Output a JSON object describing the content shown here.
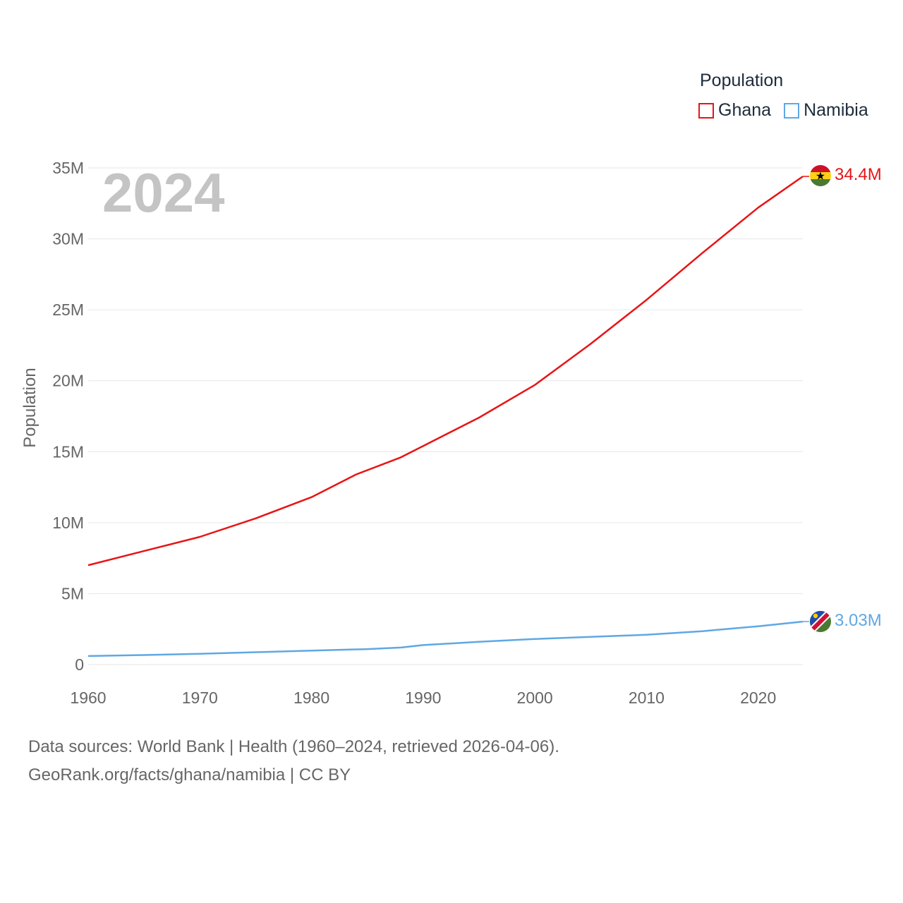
{
  "legend": {
    "title": "Population",
    "items": [
      {
        "name": "Ghana",
        "color": "#e81416"
      },
      {
        "name": "Namibia",
        "color": "#5fa8e3"
      }
    ]
  },
  "footer": {
    "line1": "Data sources: World Bank | Health (1960–2024, retrieved 2026-04-06).",
    "line2": "GeoRank.org/facts/ghana/namibia | CC BY"
  },
  "chart_data": {
    "type": "line",
    "title": "Population",
    "year_label": "2024",
    "ylabel": "Population",
    "xlabel": "",
    "xlim": [
      1960,
      2024
    ],
    "ylim": [
      0,
      35000000
    ],
    "x_ticks": [
      1960,
      1970,
      1980,
      1990,
      2000,
      2010,
      2020
    ],
    "x_tick_labels": [
      "1960",
      "1970",
      "1980",
      "1990",
      "2000",
      "2010",
      "2020"
    ],
    "y_ticks": [
      0,
      5000000,
      10000000,
      15000000,
      20000000,
      25000000,
      30000000,
      35000000
    ],
    "y_tick_labels": [
      "0",
      "5M",
      "10M",
      "15M",
      "20M",
      "25M",
      "30M",
      "35M"
    ],
    "grid": true,
    "legend_position": "top-right",
    "series": [
      {
        "name": "Ghana",
        "color": "#e81416",
        "end_label": "34.4M",
        "points": [
          [
            1960,
            7000000
          ],
          [
            1965,
            8000000
          ],
          [
            1970,
            9000000
          ],
          [
            1975,
            10300000
          ],
          [
            1980,
            11800000
          ],
          [
            1984,
            13400000
          ],
          [
            1988,
            14600000
          ],
          [
            1990,
            15400000
          ],
          [
            1995,
            17400000
          ],
          [
            2000,
            19700000
          ],
          [
            2005,
            22600000
          ],
          [
            2010,
            25700000
          ],
          [
            2015,
            29000000
          ],
          [
            2020,
            32200000
          ],
          [
            2024,
            34400000
          ]
        ]
      },
      {
        "name": "Namibia",
        "color": "#5fa8e3",
        "end_label": "3.03M",
        "points": [
          [
            1960,
            600000
          ],
          [
            1965,
            670000
          ],
          [
            1970,
            760000
          ],
          [
            1975,
            870000
          ],
          [
            1980,
            980000
          ],
          [
            1985,
            1090000
          ],
          [
            1988,
            1200000
          ],
          [
            1990,
            1370000
          ],
          [
            1995,
            1600000
          ],
          [
            2000,
            1800000
          ],
          [
            2005,
            1950000
          ],
          [
            2010,
            2100000
          ],
          [
            2015,
            2350000
          ],
          [
            2020,
            2700000
          ],
          [
            2024,
            3030000
          ]
        ]
      }
    ]
  }
}
